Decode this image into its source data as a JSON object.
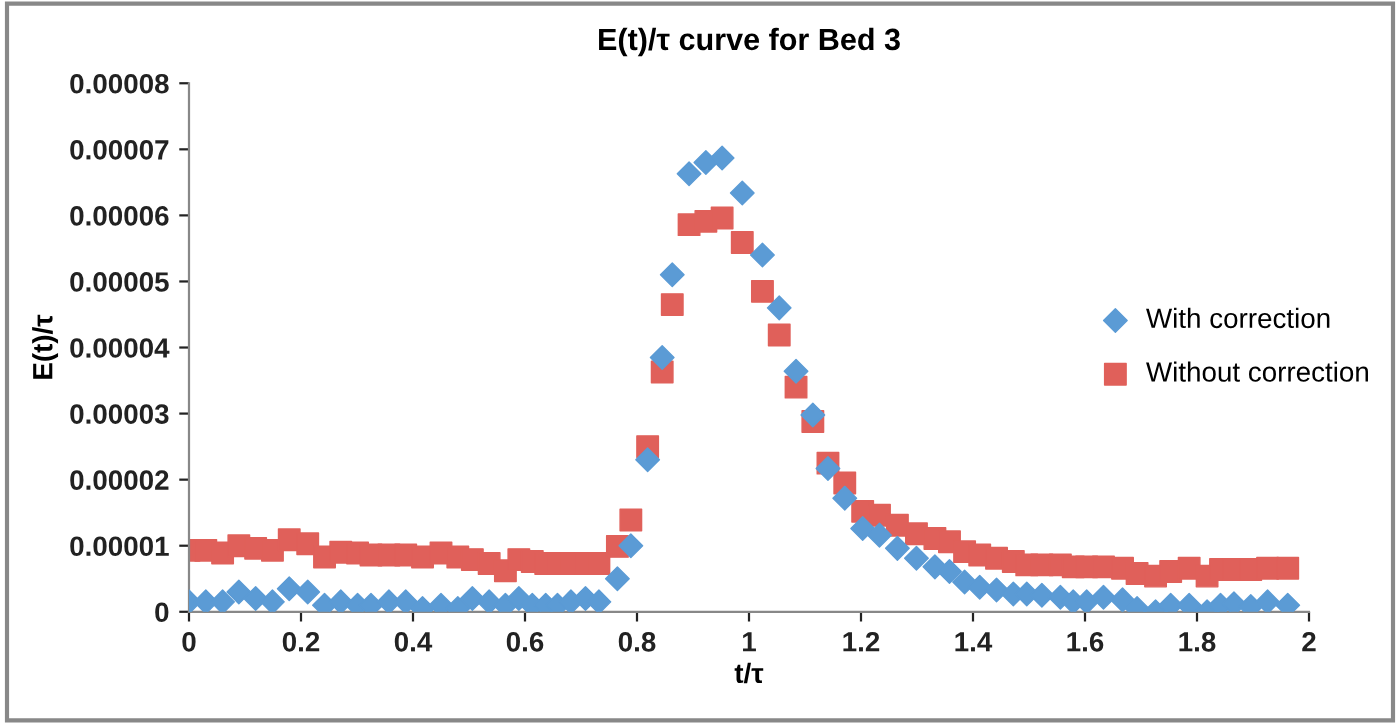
{
  "chart_data": {
    "type": "scatter",
    "title": "E(t)/τ curve for Bed 3",
    "xlabel": "t/τ",
    "ylabel": "E(t)/τ",
    "xlim": [
      0,
      2
    ],
    "xticks": [
      0,
      0.2,
      0.4,
      0.6,
      0.8,
      1,
      1.2,
      1.4,
      1.6,
      1.8,
      2
    ],
    "ylim": [
      0,
      8e-05
    ],
    "yticks": [
      {
        "value": 0,
        "label": "0"
      },
      {
        "value": 1e-05,
        "label": "0.00001"
      },
      {
        "value": 2e-05,
        "label": "0.00002"
      },
      {
        "value": 3e-05,
        "label": "0.00003"
      },
      {
        "value": 4e-05,
        "label": "0.00004"
      },
      {
        "value": 5e-05,
        "label": "0.00005"
      },
      {
        "value": 6e-05,
        "label": "0.00006"
      },
      {
        "value": 7e-05,
        "label": "0.00007"
      },
      {
        "value": 8e-05,
        "label": "0.00008"
      }
    ],
    "grid": false,
    "legend": "right",
    "series": [
      {
        "name": "With correction",
        "color": "#5b9bd5",
        "marker": "diamond",
        "x": [
          0.0,
          0.03,
          0.06,
          0.089,
          0.119,
          0.149,
          0.179,
          0.212,
          0.242,
          0.271,
          0.301,
          0.325,
          0.357,
          0.387,
          0.417,
          0.45,
          0.48,
          0.506,
          0.536,
          0.565,
          0.589,
          0.613,
          0.637,
          0.658,
          0.682,
          0.708,
          0.732,
          0.765,
          0.789,
          0.819,
          0.845,
          0.863,
          0.893,
          0.923,
          0.952,
          0.988,
          1.024,
          1.054,
          1.084,
          1.114,
          1.141,
          1.171,
          1.203,
          1.233,
          1.265,
          1.299,
          1.332,
          1.358,
          1.385,
          1.412,
          1.442,
          1.472,
          1.496,
          1.523,
          1.556,
          1.579,
          1.603,
          1.633,
          1.667,
          1.693,
          1.726,
          1.753,
          1.786,
          1.818,
          1.842,
          1.866,
          1.896,
          1.926,
          1.962
        ],
        "values": [
          1.5e-06,
          1.5e-06,
          1.5e-06,
          3e-06,
          2e-06,
          1.5e-06,
          3.5e-06,
          3e-06,
          1e-06,
          1.5e-06,
          1e-06,
          1e-06,
          1.5e-06,
          1.5e-06,
          5e-07,
          1e-06,
          5e-07,
          2e-06,
          1.5e-06,
          1e-06,
          2e-06,
          1e-06,
          1e-06,
          1e-06,
          1.5e-06,
          2e-06,
          1.5e-06,
          5e-06,
          1e-05,
          2.3e-05,
          3.85e-05,
          5.1e-05,
          6.63e-05,
          6.8e-05,
          6.87e-05,
          6.34e-05,
          5.4e-05,
          4.6e-05,
          3.64e-05,
          2.98e-05,
          2.17e-05,
          1.72e-05,
          1.26e-05,
          1.16e-05,
          9.6e-06,
          8.1e-06,
          6.8e-06,
          6.1e-06,
          4.5e-06,
          3.7e-06,
          3.3e-06,
          2.7e-06,
          2.7e-06,
          2.5e-06,
          2.2e-06,
          1.5e-06,
          1.5e-06,
          2.2e-06,
          1.8e-06,
          5e-07,
          0.0,
          1e-06,
          1e-06,
          0.0,
          1e-06,
          1.2e-06,
          8e-07,
          1.5e-06,
          1e-06
        ]
      },
      {
        "name": "Without correction",
        "color": "#e0605a",
        "marker": "square",
        "x": [
          0.0,
          0.03,
          0.06,
          0.089,
          0.119,
          0.149,
          0.179,
          0.212,
          0.242,
          0.271,
          0.301,
          0.325,
          0.357,
          0.387,
          0.417,
          0.45,
          0.48,
          0.506,
          0.536,
          0.565,
          0.589,
          0.613,
          0.637,
          0.658,
          0.682,
          0.708,
          0.732,
          0.765,
          0.789,
          0.819,
          0.845,
          0.863,
          0.893,
          0.923,
          0.952,
          0.988,
          1.024,
          1.054,
          1.084,
          1.114,
          1.141,
          1.171,
          1.203,
          1.233,
          1.265,
          1.299,
          1.332,
          1.358,
          1.385,
          1.412,
          1.442,
          1.472,
          1.496,
          1.523,
          1.556,
          1.579,
          1.603,
          1.633,
          1.667,
          1.693,
          1.726,
          1.753,
          1.786,
          1.818,
          1.842,
          1.866,
          1.896,
          1.926,
          1.962
        ],
        "values": [
          9.3e-06,
          9.3e-06,
          8.9e-06,
          1e-05,
          9.6e-06,
          9.3e-06,
          1.09e-05,
          1.03e-05,
          8.3e-06,
          9e-06,
          8.9e-06,
          8.6e-06,
          8.6e-06,
          8.6e-06,
          8.3e-06,
          8.9e-06,
          8.3e-06,
          7.9e-06,
          7.3e-06,
          6.2e-06,
          7.9e-06,
          7.6e-06,
          7.3e-06,
          7.3e-06,
          7.3e-06,
          7.3e-06,
          7.3e-06,
          9.9e-06,
          1.39e-05,
          2.5e-05,
          3.63e-05,
          4.65e-05,
          5.86e-05,
          5.91e-05,
          5.96e-05,
          5.59e-05,
          4.85e-05,
          4.19e-05,
          3.4e-05,
          2.88e-05,
          2.25e-05,
          1.95e-05,
          1.52e-05,
          1.46e-05,
          1.31e-05,
          1.18e-05,
          1.11e-05,
          1.06e-05,
          9.1e-06,
          8.6e-06,
          8.1e-06,
          7.6e-06,
          7.1e-06,
          7.1e-06,
          7.1e-06,
          6.8e-06,
          6.8e-06,
          6.8e-06,
          6.6e-06,
          5.8e-06,
          5.4e-06,
          6.1e-06,
          6.6e-06,
          5.4e-06,
          6.4e-06,
          6.4e-06,
          6.4e-06,
          6.6e-06,
          6.6e-06
        ]
      }
    ]
  }
}
